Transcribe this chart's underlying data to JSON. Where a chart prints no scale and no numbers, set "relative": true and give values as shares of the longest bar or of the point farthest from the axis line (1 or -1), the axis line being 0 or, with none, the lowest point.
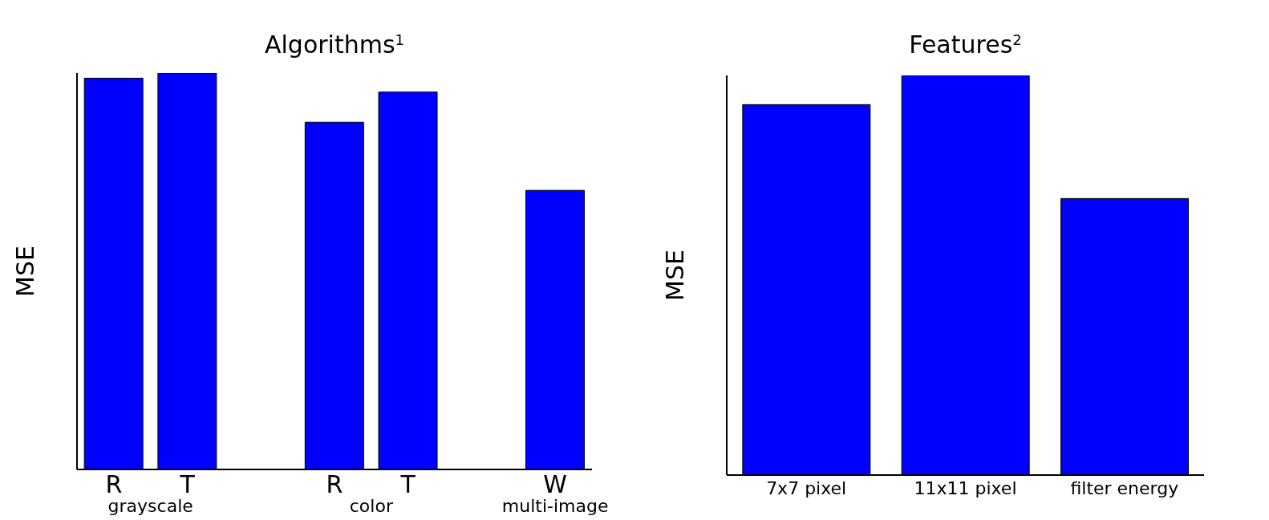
{
  "chart_data": [
    {
      "type": "bar",
      "title": "Algorithms$^{1}$",
      "ylabel": "MSE",
      "categories": [
        "R",
        "T",
        null,
        "R",
        "T",
        null,
        "W"
      ],
      "values": [
        0.987,
        1,
        null,
        0.876,
        0.952,
        null,
        0.704
      ],
      "color": "#0000ff",
      "relative": true,
      "annotations": [
        "grayscale",
        "color",
        "multi-image"
      ]
    },
    {
      "type": "bar",
      "title": "Features$^{2}$",
      "ylabel": "MSE",
      "categories": [
        "7x7 pixel",
        "11x11 pixel",
        "filter energy"
      ],
      "values": [
        0.927,
        1,
        0.692
      ],
      "color": "#0000ff",
      "relative": true
    }
  ]
}
